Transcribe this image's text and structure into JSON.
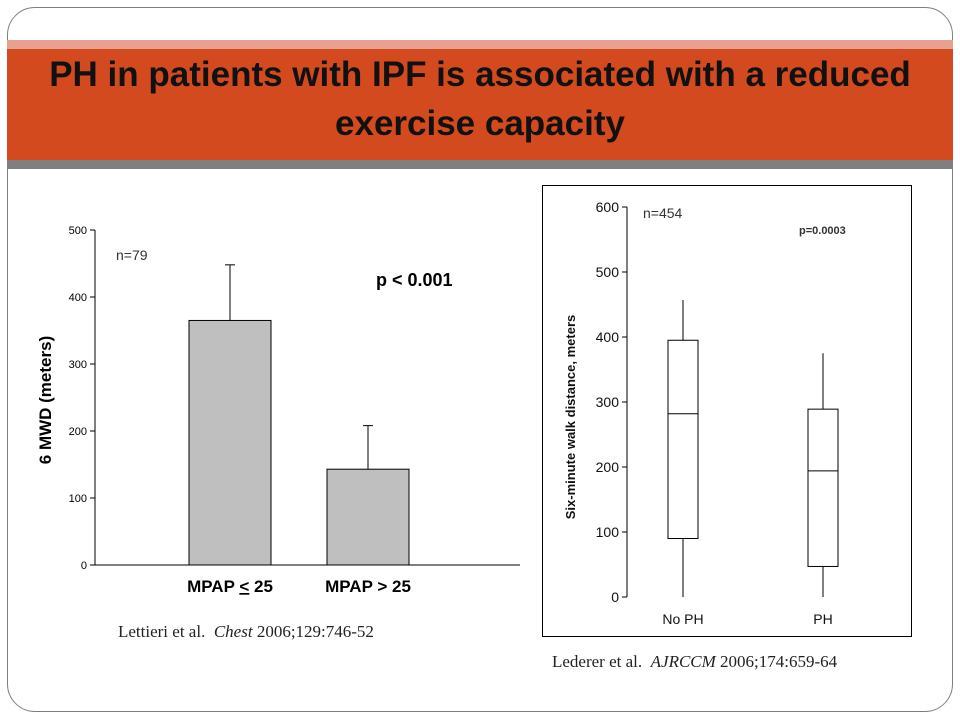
{
  "slide": {
    "title": "PH in patients with IPF is associated with a reduced exercise capacity",
    "colors": {
      "band": "#d24a1e",
      "band_stripe": "#e8a090",
      "divider": "#7f7f7f"
    }
  },
  "citations": {
    "left": {
      "authors": "Lettieri et al.",
      "journal": "Chest",
      "rest": "2006;129:746-52"
    },
    "right": {
      "authors": "Lederer et al.",
      "journal": "AJRCCM",
      "rest": "2006;174:659-64"
    }
  },
  "chart_data": [
    {
      "type": "bar",
      "title": "",
      "xlabel": "",
      "ylabel": "6 MWD (meters)",
      "ylim": [
        0,
        500
      ],
      "yticks": [
        0,
        100,
        200,
        300,
        400,
        500
      ],
      "categories": [
        "MPAP < 25",
        "MPAP > 25"
      ],
      "category_display": [
        {
          "text": "MPAP ",
          "symbol": "<",
          "tail": " 25",
          "underline_symbol": true
        },
        {
          "text": "MPAP ",
          "symbol": ">",
          "tail": " 25",
          "underline_symbol": false
        }
      ],
      "values": [
        365,
        143
      ],
      "error_upper": [
        448,
        208
      ],
      "annotations": [
        "n=79",
        "p < 0.001"
      ],
      "grid": false,
      "bar_color": "#bfbfbf"
    },
    {
      "type": "box",
      "title": "",
      "xlabel": "",
      "ylabel": "Six-minute walk distance, meters",
      "ylim": [
        0,
        600
      ],
      "yticks": [
        0,
        100,
        200,
        300,
        400,
        500,
        600
      ],
      "categories": [
        "No PH",
        "PH"
      ],
      "boxes": [
        {
          "whisker_low": 0,
          "q1": 90,
          "median": 282,
          "q3": 395,
          "whisker_high": 457
        },
        {
          "whisker_low": 0,
          "q1": 47,
          "median": 194,
          "q3": 289,
          "whisker_high": 375
        }
      ],
      "annotations": [
        "n=454",
        "p=0.0003"
      ],
      "grid": false
    }
  ]
}
